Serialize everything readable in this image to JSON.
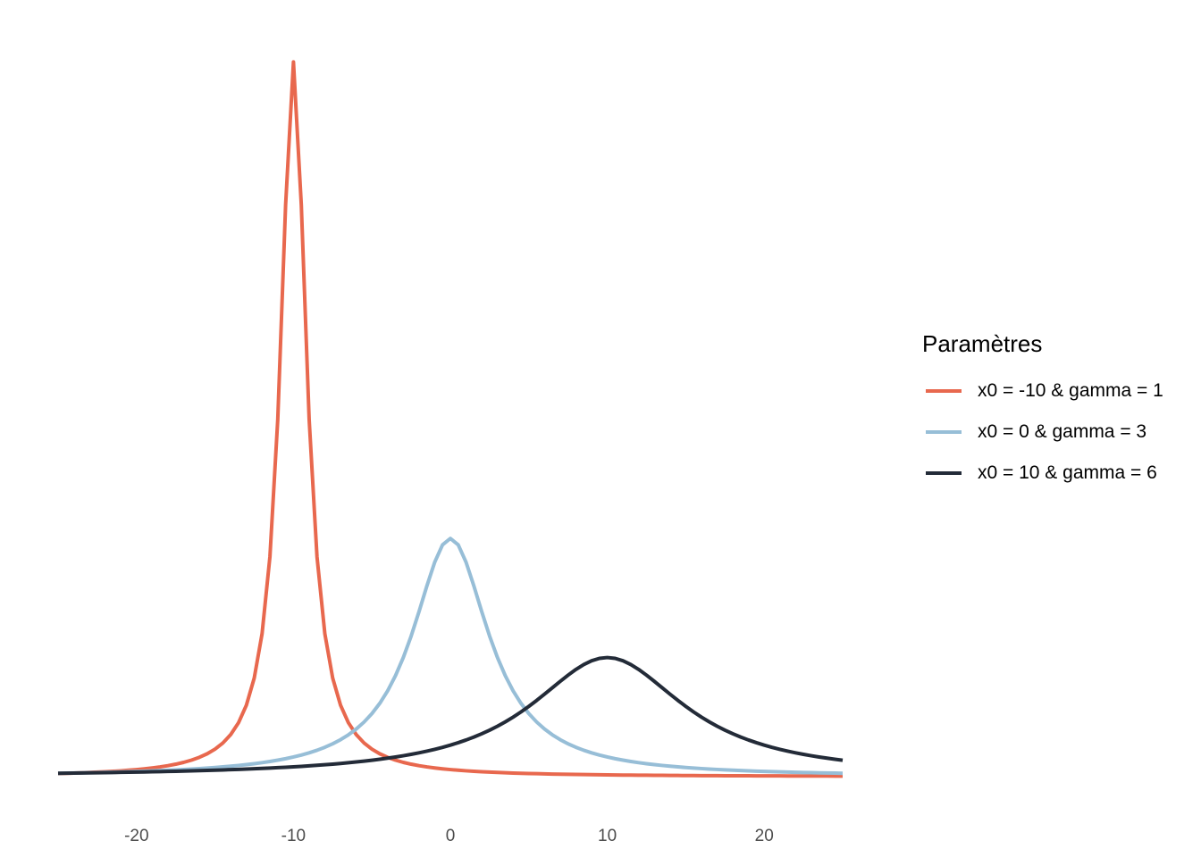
{
  "chart_data": {
    "type": "line",
    "xlabel": "",
    "ylabel": "",
    "xlim": [
      -25,
      25
    ],
    "ylim": [
      0,
      0.33
    ],
    "grid": false,
    "legend_position": "right",
    "x_ticks": [
      -20,
      -10,
      0,
      10,
      20
    ],
    "x_tick_labels": [
      "-20",
      "-10",
      "0",
      "10",
      "20"
    ],
    "legend_title": "Paramètres",
    "series": [
      {
        "name": "x0 = -10 & gamma = 1",
        "x0": -10,
        "gamma": 1,
        "color": "#E8684E",
        "peak": 0.3183
      },
      {
        "name": "x0 = 0 & gamma = 3",
        "x0": 0,
        "gamma": 3,
        "color": "#97BED7",
        "peak": 0.1061
      },
      {
        "name": "x0 = 10 & gamma = 6",
        "x0": 10,
        "gamma": 6,
        "color": "#232B38",
        "peak": 0.0531
      }
    ]
  }
}
